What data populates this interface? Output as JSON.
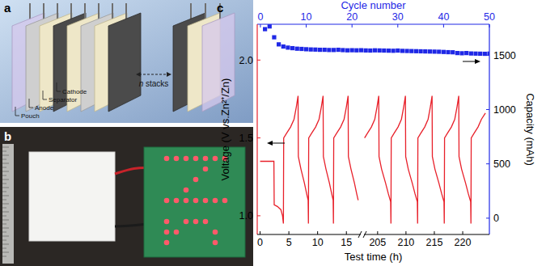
{
  "panel_labels": [
    "a",
    "b",
    "c"
  ],
  "diagram": {
    "layers": [
      "Pouch",
      "Anode",
      "Separator",
      "Cathode"
    ],
    "stack_count": "n",
    "stack_text": " stacks"
  },
  "chart_data": [
    {
      "type": "line",
      "xlabel": "Test time (h)",
      "ylabel": "Voltage (V vs.Zn²⁺/Zn)",
      "color": "#e8202a",
      "xlim": [
        -0.5,
        17.5
      ],
      "xticks": [
        0,
        5,
        10,
        15
      ],
      "ylim": [
        0.88,
        2.23
      ],
      "yticks": [
        {
          "value": 1,
          "label": "1.0"
        },
        1.5,
        {
          "value": 2,
          "label": "2.0"
        }
      ],
      "x": [
        0,
        2.4,
        2.45,
        3.0,
        3.6,
        3.9,
        4.05,
        4.1,
        4.6,
        5.3,
        5.9,
        6.3,
        6.6,
        6.65,
        7.1,
        7.7,
        8.1,
        8.35,
        8.4,
        8.45,
        8.95,
        9.65,
        10.25,
        10.65,
        10.95,
        11.0,
        11.45,
        12.05,
        12.45,
        12.7,
        12.75,
        12.8,
        13.3,
        14.0,
        14.6,
        15.0,
        15.3,
        15.35,
        15.8,
        16.4,
        16.8,
        17.05
      ],
      "values": [
        1.35,
        1.35,
        1.07,
        1.06,
        1.04,
        1.0,
        0.95,
        1.5,
        1.53,
        1.57,
        1.62,
        1.7,
        1.77,
        1.38,
        1.3,
        1.21,
        1.14,
        1.1,
        0.95,
        1.5,
        1.53,
        1.57,
        1.62,
        1.7,
        1.77,
        1.38,
        1.3,
        1.21,
        1.14,
        1.1,
        0.95,
        1.5,
        1.53,
        1.57,
        1.62,
        1.7,
        1.77,
        1.38,
        1.3,
        1.21,
        1.14,
        1.1
      ]
    },
    {
      "type": "line",
      "color": "#e8202a",
      "xlim": [
        202.6,
        224.7
      ],
      "xticks": [
        205,
        210,
        215,
        220
      ],
      "ylim": [
        0.88,
        2.23
      ],
      "x": [
        202.7,
        203.2,
        203.9,
        204.5,
        204.9,
        205.2,
        205.25,
        205.7,
        206.4,
        206.9,
        207.3,
        207.35,
        207.4,
        207.9,
        208.6,
        209.2,
        209.6,
        209.9,
        209.95,
        210.4,
        211.1,
        211.6,
        212.0,
        212.05,
        212.1,
        212.6,
        213.3,
        213.9,
        214.3,
        214.6,
        214.65,
        215.1,
        215.8,
        216.3,
        216.7,
        216.75,
        216.8,
        217.3,
        218.0,
        218.6,
        219.0,
        219.3,
        219.35,
        219.8,
        220.5,
        221.0,
        221.4,
        221.45,
        221.5,
        222.0,
        222.7,
        223.3,
        224.0
      ],
      "values": [
        1.5,
        1.53,
        1.57,
        1.62,
        1.7,
        1.77,
        1.38,
        1.3,
        1.21,
        1.14,
        1.09,
        0.95,
        1.5,
        1.53,
        1.57,
        1.62,
        1.7,
        1.77,
        1.38,
        1.3,
        1.21,
        1.14,
        1.09,
        0.95,
        1.5,
        1.53,
        1.57,
        1.62,
        1.7,
        1.77,
        1.38,
        1.3,
        1.21,
        1.14,
        1.09,
        0.95,
        1.5,
        1.53,
        1.57,
        1.62,
        1.7,
        1.77,
        1.38,
        1.3,
        1.21,
        1.14,
        1.09,
        0.95,
        1.5,
        1.53,
        1.57,
        1.62,
        1.66
      ]
    },
    {
      "type": "scatter",
      "xlabel": "Cycle number",
      "ylabel": "Capacity (mAh)",
      "color": "#1f28e6",
      "marker": "square",
      "xlim": [
        -0.7,
        50
      ],
      "xticks": [
        0,
        10,
        20,
        30,
        40,
        50
      ],
      "ylim": [
        -150,
        1785
      ],
      "yticks": [
        0,
        500,
        1000,
        1500
      ],
      "x": [
        1,
        2,
        3,
        4,
        5,
        6,
        7,
        8,
        9,
        10,
        11,
        12,
        13,
        14,
        15,
        16,
        17,
        18,
        19,
        20,
        21,
        22,
        23,
        24,
        25,
        26,
        27,
        28,
        29,
        30,
        31,
        32,
        33,
        34,
        35,
        36,
        37,
        38,
        39,
        40,
        41,
        42,
        43,
        44,
        45,
        46,
        47,
        48,
        49,
        50
      ],
      "values": [
        1740,
        1765,
        1665,
        1600,
        1580,
        1570,
        1565,
        1560,
        1558,
        1555,
        1553,
        1552,
        1550,
        1550,
        1548,
        1548,
        1550,
        1547,
        1545,
        1546,
        1545,
        1546,
        1544,
        1543,
        1545,
        1544,
        1543,
        1542,
        1541,
        1543,
        1540,
        1539,
        1538,
        1537,
        1536,
        1535,
        1534,
        1533,
        1532,
        1530,
        1528,
        1527,
        1520,
        1518,
        1520,
        1516,
        1515,
        1514,
        1513,
        1515
      ]
    }
  ]
}
